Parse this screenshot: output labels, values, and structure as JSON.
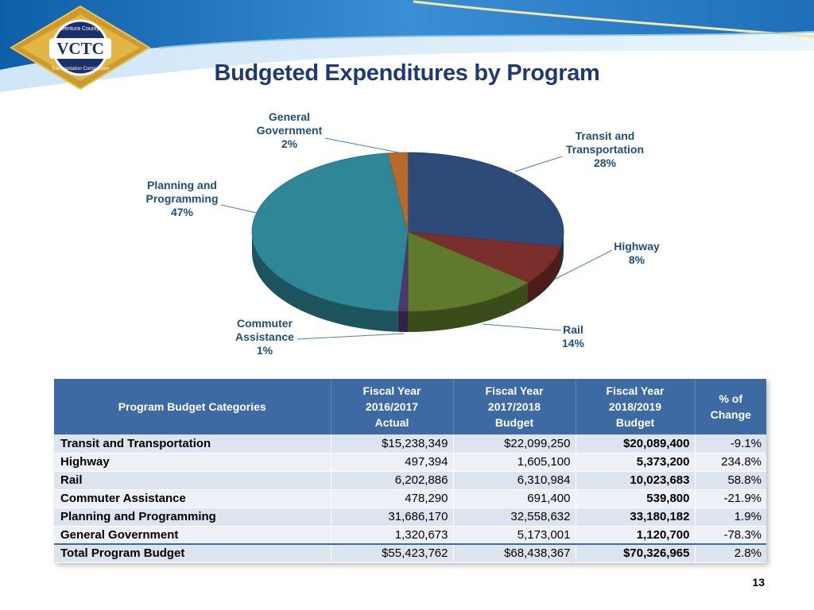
{
  "header": {
    "logo_text": "VCTC",
    "logo_subtext": "Ventura County Transportation Commission",
    "title": "Budgeted Expenditures by Program"
  },
  "colors": {
    "title": "#1f3a73",
    "table_header": "#3d6aa3",
    "row_odd": "#dce4ef",
    "row_even": "#edf1f7",
    "pie_label": "#1f4e79"
  },
  "chart_data": {
    "type": "pie",
    "style": "3d",
    "start_angle_deg": -90,
    "slices": [
      {
        "label_lines": [
          "Transit and",
          "Transportation",
          "28%"
        ],
        "name": "Transit and Transportation",
        "value": 28,
        "color": "#2e4a78"
      },
      {
        "label_lines": [
          "Highway",
          "8%"
        ],
        "name": "Highway",
        "value": 8,
        "color": "#7a2e2c"
      },
      {
        "label_lines": [
          "Rail",
          "14%"
        ],
        "name": "Rail",
        "value": 14,
        "color": "#5f7a2c"
      },
      {
        "label_lines": [
          "Commuter",
          "Assistance",
          "1%"
        ],
        "name": "Commuter Assistance",
        "value": 1,
        "color": "#4b3a6e"
      },
      {
        "label_lines": [
          "Planning and",
          "Programming",
          "47%"
        ],
        "name": "Planning and Programming",
        "value": 47,
        "color": "#2e8696"
      },
      {
        "label_lines": [
          "General",
          "Government",
          "2%"
        ],
        "name": "General Government",
        "value": 2,
        "color": "#b86a2a"
      }
    ]
  },
  "table": {
    "headers": [
      {
        "lines": [
          "Program Budget Categories"
        ]
      },
      {
        "lines": [
          "Fiscal Year",
          "2016/2017",
          "Actual"
        ]
      },
      {
        "lines": [
          "Fiscal Year",
          "2017/2018",
          "Budget"
        ]
      },
      {
        "lines": [
          "Fiscal Year",
          "2018/2019",
          "Budget"
        ]
      },
      {
        "lines": [
          "% of",
          "Change"
        ]
      }
    ],
    "rows": [
      {
        "category": "Transit and Transportation",
        "fy2017": "$15,238,349",
        "fy2018": "$22,099,250",
        "fy2019": "$20,089,400",
        "change": "-9.1%"
      },
      {
        "category": "Highway",
        "fy2017": "497,394",
        "fy2018": "1,605,100",
        "fy2019": "5,373,200",
        "change": "234.8%"
      },
      {
        "category": "Rail",
        "fy2017": "6,202,886",
        "fy2018": "6,310,984",
        "fy2019": "10,023,683",
        "change": "58.8%"
      },
      {
        "category": "Commuter Assistance",
        "fy2017": "478,290",
        "fy2018": "691,400",
        "fy2019": "539,800",
        "change": "-21.9%"
      },
      {
        "category": "Planning and Programming",
        "fy2017": "31,686,170",
        "fy2018": "32,558,632",
        "fy2019": "33,180,182",
        "change": "1.9%"
      },
      {
        "category": "General Government",
        "fy2017": "1,320,673",
        "fy2018": "5,173,001",
        "fy2019": "1,120,700",
        "change": "-78.3%"
      }
    ],
    "total": {
      "category": "Total Program Budget",
      "fy2017": "$55,423,762",
      "fy2018": "$68,438,367",
      "fy2019": "$70,326,965",
      "change": "2.8%"
    }
  },
  "page_number": "13"
}
